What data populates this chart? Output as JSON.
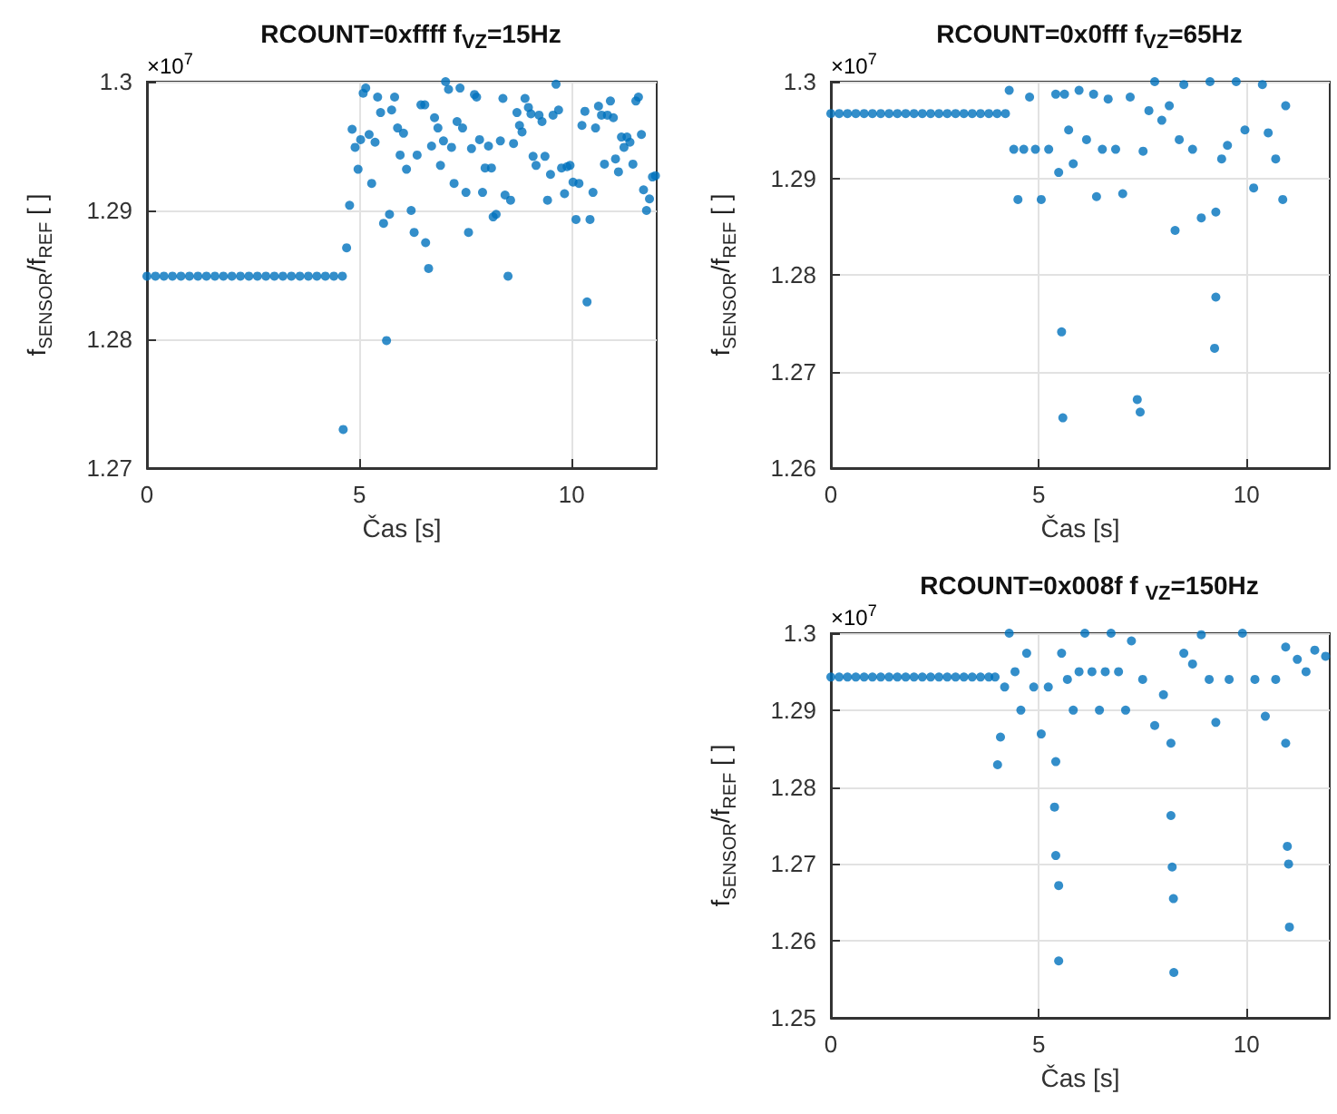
{
  "chart_data": [
    {
      "type": "scatter",
      "title": "RCOUNT=0xffff f$_{VZ}$=15Hz",
      "xlabel": "Čas [s]",
      "ylabel": "f$_{SENSOR}$/f$_{REF}$ [ ]",
      "annotations": [
        "×10$^{7}$"
      ],
      "color": "#0072bd",
      "marker": "circle",
      "grid": true,
      "xlim": [
        0,
        12
      ],
      "xticks": [
        0,
        5,
        10
      ],
      "ylim": [
        1.27,
        1.3
      ],
      "yticks": [
        1.27,
        1.28,
        1.29,
        1.3
      ],
      "x": [
        0,
        0.2,
        0.4,
        0.6,
        0.8,
        1,
        1.2,
        1.4,
        1.6,
        1.8,
        2,
        2.2,
        2.4,
        2.6,
        2.8,
        3,
        3.2,
        3.4,
        3.6,
        3.8,
        4,
        4.2,
        4.4,
        4.6,
        4.62,
        4.7,
        4.77,
        4.83,
        4.9,
        4.97,
        5.03,
        5.09,
        5.15,
        5.23,
        5.29,
        5.37,
        5.43,
        5.5,
        5.57,
        5.64,
        5.71,
        5.76,
        5.83,
        5.9,
        5.96,
        6.04,
        6.11,
        6.22,
        6.29,
        6.36,
        6.45,
        6.54,
        6.56,
        6.63,
        6.7,
        6.77,
        6.85,
        6.91,
        6.98,
        7.03,
        7.1,
        7.17,
        7.23,
        7.3,
        7.37,
        7.43,
        7.51,
        7.57,
        7.64,
        7.71,
        7.76,
        7.83,
        7.9,
        7.96,
        8.04,
        8.11,
        8.15,
        8.22,
        8.32,
        8.38,
        8.43,
        8.5,
        8.56,
        8.63,
        8.71,
        8.77,
        8.83,
        8.9,
        8.98,
        9.04,
        9.09,
        9.16,
        9.23,
        9.3,
        9.37,
        9.43,
        9.5,
        9.56,
        9.63,
        9.69,
        9.76,
        9.83,
        9.89,
        9.96,
        10.03,
        10.1,
        10.17,
        10.24,
        10.31,
        10.36,
        10.43,
        10.5,
        10.56,
        10.63,
        10.7,
        10.77,
        10.84,
        10.91,
        10.98,
        11.03,
        11.1,
        11.17,
        11.23,
        11.3,
        11.37,
        11.44,
        11.51,
        11.57,
        11.64,
        11.69,
        11.76,
        11.83,
        11.9,
        11.97
      ],
      "values": [
        1.2849,
        1.2849,
        1.2849,
        1.2849,
        1.2849,
        1.2849,
        1.2849,
        1.2849,
        1.2849,
        1.2849,
        1.2849,
        1.2849,
        1.2849,
        1.2849,
        1.2849,
        1.2849,
        1.2849,
        1.2849,
        1.2849,
        1.2849,
        1.2849,
        1.2849,
        1.2849,
        1.2849,
        1.273,
        1.2871,
        1.2904,
        1.2963,
        1.2949,
        1.2932,
        1.2955,
        1.2991,
        1.2995,
        1.2959,
        1.2921,
        1.2953,
        1.2988,
        1.2976,
        1.289,
        1.2799,
        1.2897,
        1.2978,
        1.2988,
        1.2964,
        1.2943,
        1.296,
        1.2932,
        1.29,
        1.2883,
        1.2943,
        1.2982,
        1.2982,
        1.2875,
        1.2855,
        1.295,
        1.2972,
        1.2964,
        1.2935,
        1.2954,
        1.3,
        1.2994,
        1.2949,
        1.2921,
        1.2969,
        1.2995,
        1.2964,
        1.2914,
        1.2883,
        1.2948,
        1.299,
        1.2988,
        1.2955,
        1.2914,
        1.2933,
        1.295,
        1.2933,
        1.2895,
        1.2897,
        1.2954,
        1.2987,
        1.2912,
        1.2849,
        1.2908,
        1.2952,
        1.2976,
        1.2966,
        1.2961,
        1.2987,
        1.298,
        1.2975,
        1.2942,
        1.2935,
        1.2974,
        1.2969,
        1.2942,
        1.2908,
        1.2928,
        1.2974,
        1.2998,
        1.2978,
        1.2933,
        1.2913,
        1.2934,
        1.2935,
        1.2922,
        1.2893,
        1.2921,
        1.2966,
        1.2977,
        1.2829,
        1.2893,
        1.2914,
        1.2964,
        1.2981,
        1.2974,
        1.2936,
        1.2974,
        1.2985,
        1.2972,
        1.294,
        1.293,
        1.2957,
        1.2949,
        1.2957,
        1.2953,
        1.2936,
        1.2985,
        1.2988,
        1.2959,
        1.2916,
        1.29,
        1.2909,
        1.2926,
        1.2927
      ]
    },
    {
      "type": "scatter",
      "title": "RCOUNT=0x0fff f$_{VZ}$=65Hz",
      "xlabel": "Čas [s]",
      "ylabel": "f$_{SENSOR}$/f$_{REF}$ [ ]",
      "annotations": [
        "×10$^{7}$"
      ],
      "color": "#0072bd",
      "marker": "circle",
      "grid": true,
      "xlim": [
        0,
        12
      ],
      "xticks": [
        0,
        5,
        10
      ],
      "ylim": [
        1.26,
        1.3
      ],
      "yticks": [
        1.26,
        1.27,
        1.28,
        1.29,
        1.3
      ],
      "x": [
        0,
        0.2,
        0.4,
        0.6,
        0.8,
        1,
        1.2,
        1.4,
        1.6,
        1.8,
        2,
        2.2,
        2.4,
        2.6,
        2.8,
        3,
        3.2,
        3.4,
        3.6,
        3.8,
        4,
        4.2,
        4.29,
        4.4,
        4.5,
        4.64,
        4.78,
        4.92,
        5.06,
        5.24,
        5.41,
        5.48,
        5.55,
        5.58,
        5.62,
        5.72,
        5.83,
        5.97,
        6.15,
        6.32,
        6.39,
        6.53,
        6.67,
        6.85,
        7.02,
        7.2,
        7.37,
        7.44,
        7.51,
        7.65,
        7.79,
        7.96,
        8.14,
        8.28,
        8.38,
        8.49,
        8.7,
        8.91,
        9.12,
        9.23,
        9.26,
        9.26,
        9.4,
        9.54,
        9.75,
        9.96,
        10.17,
        10.38,
        10.52,
        10.7,
        10.87,
        10.94
      ],
      "values": [
        1.2967,
        1.2967,
        1.2967,
        1.2967,
        1.2967,
        1.2967,
        1.2967,
        1.2967,
        1.2967,
        1.2967,
        1.2967,
        1.2967,
        1.2967,
        1.2967,
        1.2967,
        1.2967,
        1.2967,
        1.2967,
        1.2967,
        1.2967,
        1.2967,
        1.2967,
        1.2991,
        1.293,
        1.2878,
        1.293,
        1.2984,
        1.293,
        1.2878,
        1.293,
        1.2987,
        1.2906,
        1.2741,
        1.2652,
        1.2987,
        1.295,
        1.2915,
        1.2991,
        1.294,
        1.2987,
        1.2881,
        1.293,
        1.2982,
        1.293,
        1.2884,
        1.2984,
        1.2671,
        1.2658,
        1.2928,
        1.297,
        1.3,
        1.296,
        1.2975,
        1.2846,
        1.294,
        1.2997,
        1.293,
        1.2859,
        1.3,
        1.2724,
        1.2865,
        1.2777,
        1.292,
        1.2934,
        1.3,
        1.295,
        1.289,
        1.2997,
        1.2947,
        1.292,
        1.2878,
        1.2975
      ]
    },
    {
      "type": "scatter",
      "title": "RCOUNT=0x008f f $_{VZ}$=150Hz",
      "xlabel": "Čas [s]",
      "ylabel": "f$_{SENSOR}$/f$_{REF}$ [ ]",
      "annotations": [
        "×10$^{7}$"
      ],
      "color": "#0072bd",
      "marker": "circle",
      "grid": true,
      "xlim": [
        0,
        12
      ],
      "xticks": [
        0,
        5,
        10
      ],
      "ylim": [
        1.25,
        1.3
      ],
      "yticks": [
        1.25,
        1.26,
        1.27,
        1.28,
        1.29,
        1.3
      ],
      "x": [
        0,
        0.2,
        0.4,
        0.6,
        0.8,
        1,
        1.2,
        1.4,
        1.6,
        1.8,
        2,
        2.2,
        2.4,
        2.6,
        2.8,
        3,
        3.2,
        3.4,
        3.6,
        3.8,
        3.95,
        4.01,
        4.08,
        4.18,
        4.29,
        4.43,
        4.57,
        4.71,
        4.88,
        5.06,
        5.23,
        5.38,
        5.41,
        5.41,
        5.48,
        5.48,
        5.55,
        5.69,
        5.83,
        5.97,
        6.11,
        6.28,
        6.46,
        6.6,
        6.74,
        6.92,
        7.09,
        7.23,
        7.5,
        7.79,
        8.0,
        8.18,
        8.18,
        8.21,
        8.24,
        8.25,
        8.49,
        8.7,
        8.91,
        9.1,
        9.26,
        9.58,
        9.9,
        10.2,
        10.45,
        10.7,
        10.94,
        10.94,
        10.98,
        11.01,
        11.03,
        11.22,
        11.43,
        11.64,
        11.9
      ],
      "values": [
        1.2943,
        1.2943,
        1.2943,
        1.2943,
        1.2943,
        1.2943,
        1.2943,
        1.2943,
        1.2943,
        1.2943,
        1.2943,
        1.2943,
        1.2943,
        1.2943,
        1.2943,
        1.2943,
        1.2943,
        1.2943,
        1.2943,
        1.2943,
        1.2943,
        1.2829,
        1.2865,
        1.293,
        1.3,
        1.295,
        1.29,
        1.2974,
        1.293,
        1.2869,
        1.293,
        1.2774,
        1.2833,
        1.2711,
        1.2672,
        1.2574,
        1.2974,
        1.294,
        1.29,
        1.295,
        1.3,
        1.295,
        1.29,
        1.295,
        1.3,
        1.295,
        1.29,
        1.299,
        1.294,
        1.288,
        1.292,
        1.2857,
        1.2763,
        1.2696,
        1.2655,
        1.2559,
        1.2974,
        1.296,
        1.2998,
        1.294,
        1.2884,
        1.294,
        1.3,
        1.294,
        1.2892,
        1.294,
        1.2857,
        1.2982,
        1.2723,
        1.27,
        1.2618,
        1.2966,
        1.295,
        1.2978,
        1.297
      ]
    }
  ]
}
